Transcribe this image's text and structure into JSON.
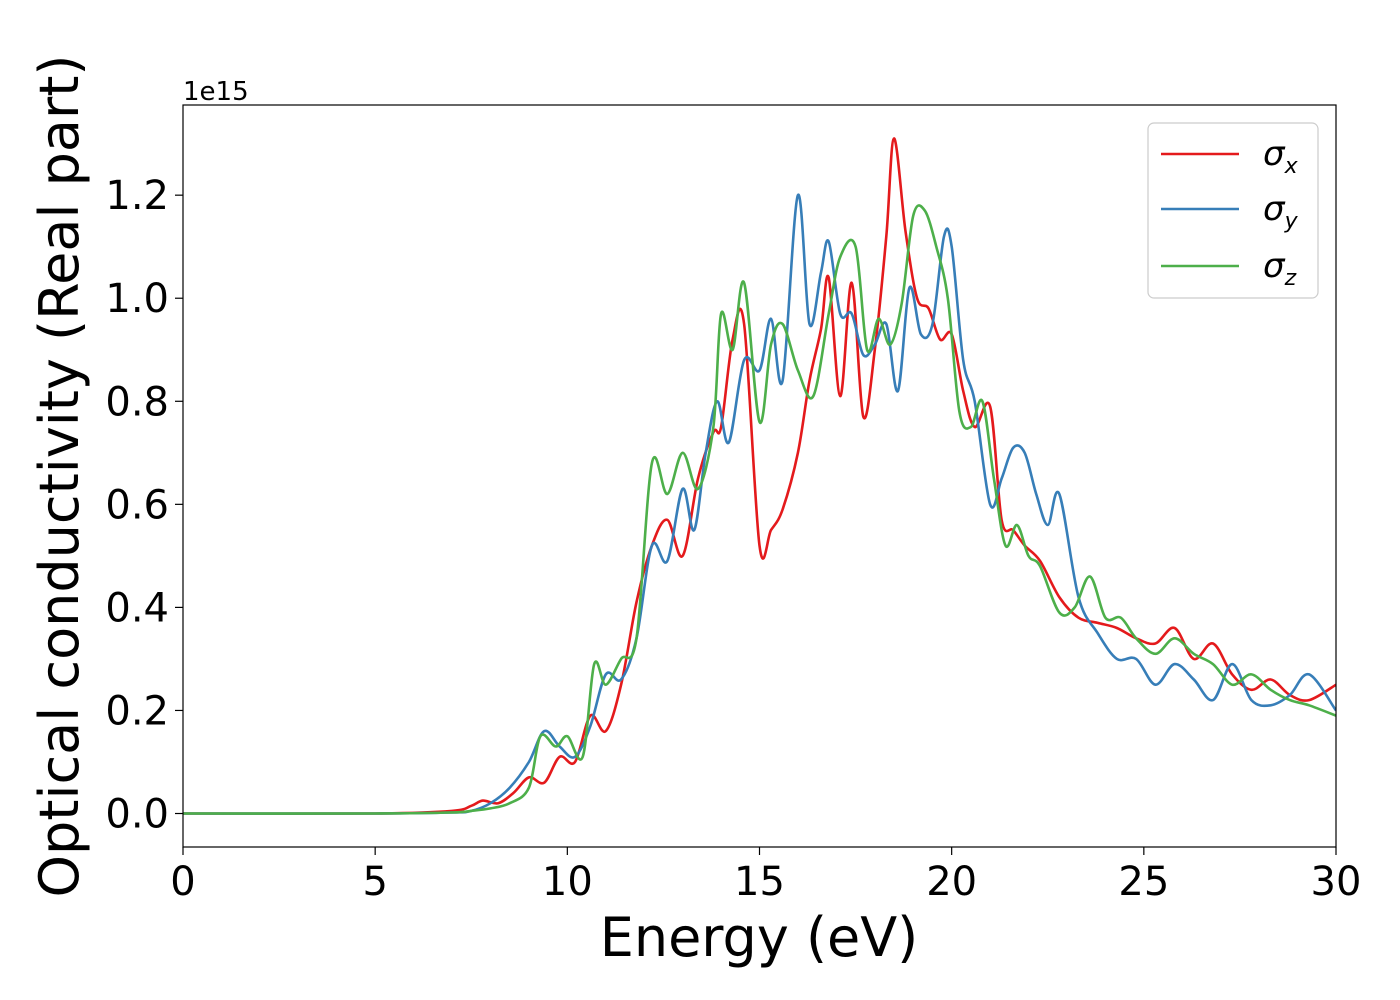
{
  "chart_data": {
    "type": "line",
    "xlabel": "Energy (eV)",
    "ylabel": "Optical conductivity (Real part)",
    "y_offset_label": "1e15",
    "xlim": [
      0,
      30
    ],
    "ylim": [
      -0.065,
      1.375
    ],
    "x_ticks": [
      "0",
      "5",
      "10",
      "15",
      "20",
      "25",
      "30"
    ],
    "y_ticks": [
      "0.0",
      "0.2",
      "0.4",
      "0.6",
      "0.8",
      "1.0",
      "1.2"
    ],
    "grid": false,
    "legend_position": "top-right",
    "series": [
      {
        "name": "σx",
        "symbol": "σ",
        "sub": "x",
        "color": "#e41a1c",
        "x": [
          0,
          5,
          7,
          7.5,
          7.8,
          8.2,
          8.6,
          9.0,
          9.4,
          9.8,
          10.2,
          10.6,
          11.0,
          11.4,
          11.8,
          12.2,
          12.6,
          13.0,
          13.4,
          13.8,
          14.0,
          14.3,
          14.6,
          15.0,
          15.3,
          15.6,
          16.0,
          16.3,
          16.6,
          16.8,
          17.1,
          17.4,
          17.7,
          18.0,
          18.3,
          18.5,
          18.8,
          19.1,
          19.4,
          19.7,
          20.0,
          20.3,
          20.6,
          21.0,
          21.3,
          21.6,
          21.9,
          22.3,
          22.8,
          23.3,
          23.8,
          24.3,
          24.8,
          25.3,
          25.8,
          26.3,
          26.8,
          27.3,
          27.8,
          28.3,
          28.8,
          29.3,
          30
        ],
        "y": [
          0,
          0,
          0.005,
          0.015,
          0.025,
          0.02,
          0.04,
          0.07,
          0.06,
          0.11,
          0.1,
          0.19,
          0.16,
          0.25,
          0.41,
          0.52,
          0.57,
          0.5,
          0.65,
          0.74,
          0.75,
          0.92,
          0.95,
          0.52,
          0.55,
          0.59,
          0.7,
          0.84,
          0.94,
          1.04,
          0.81,
          1.03,
          0.77,
          0.9,
          1.12,
          1.31,
          1.13,
          1.0,
          0.98,
          0.92,
          0.93,
          0.82,
          0.75,
          0.79,
          0.57,
          0.55,
          0.52,
          0.49,
          0.42,
          0.38,
          0.37,
          0.36,
          0.34,
          0.33,
          0.36,
          0.3,
          0.33,
          0.27,
          0.24,
          0.26,
          0.23,
          0.22,
          0.25
        ]
      },
      {
        "name": "σy",
        "symbol": "σ",
        "sub": "y",
        "color": "#377eb8",
        "x": [
          0,
          5,
          7,
          7.5,
          8.0,
          8.5,
          9.0,
          9.4,
          9.8,
          10.2,
          10.6,
          11.0,
          11.4,
          11.8,
          12.2,
          12.6,
          13.0,
          13.3,
          13.6,
          13.9,
          14.2,
          14.6,
          15.0,
          15.3,
          15.6,
          16.0,
          16.3,
          16.6,
          16.8,
          17.1,
          17.4,
          17.7,
          18.0,
          18.3,
          18.6,
          18.9,
          19.2,
          19.5,
          19.8,
          20.0,
          20.3,
          20.6,
          21.0,
          21.3,
          21.6,
          21.9,
          22.2,
          22.5,
          22.8,
          23.3,
          23.8,
          24.3,
          24.8,
          25.3,
          25.8,
          26.3,
          26.8,
          27.3,
          27.8,
          28.3,
          28.8,
          29.3,
          30
        ],
        "y": [
          0,
          0,
          0.002,
          0.005,
          0.02,
          0.05,
          0.1,
          0.16,
          0.13,
          0.11,
          0.17,
          0.27,
          0.26,
          0.34,
          0.52,
          0.49,
          0.63,
          0.55,
          0.7,
          0.8,
          0.72,
          0.88,
          0.86,
          0.96,
          0.84,
          1.2,
          0.95,
          1.05,
          1.11,
          0.97,
          0.97,
          0.89,
          0.91,
          0.95,
          0.82,
          1.02,
          0.93,
          0.95,
          1.12,
          1.1,
          0.88,
          0.8,
          0.6,
          0.65,
          0.71,
          0.7,
          0.62,
          0.56,
          0.62,
          0.42,
          0.35,
          0.3,
          0.3,
          0.25,
          0.29,
          0.26,
          0.22,
          0.29,
          0.22,
          0.21,
          0.23,
          0.27,
          0.2
        ]
      },
      {
        "name": "σz",
        "symbol": "σ",
        "sub": "z",
        "color": "#4daf4a",
        "x": [
          0,
          5,
          7,
          7.5,
          8.0,
          8.5,
          9.0,
          9.3,
          9.7,
          10.0,
          10.4,
          10.7,
          11.0,
          11.4,
          11.8,
          12.2,
          12.6,
          13.0,
          13.4,
          13.8,
          14.0,
          14.3,
          14.6,
          15.0,
          15.3,
          15.6,
          16.0,
          16.4,
          16.8,
          17.1,
          17.5,
          17.8,
          18.1,
          18.4,
          18.7,
          19.0,
          19.3,
          19.6,
          19.9,
          20.2,
          20.5,
          20.8,
          21.1,
          21.4,
          21.7,
          22.0,
          22.3,
          22.8,
          23.2,
          23.6,
          24.0,
          24.4,
          24.8,
          25.3,
          25.8,
          26.3,
          26.8,
          27.3,
          27.8,
          28.3,
          28.8,
          29.3,
          30
        ],
        "y": [
          0,
          0,
          0.002,
          0.005,
          0.01,
          0.02,
          0.05,
          0.15,
          0.13,
          0.15,
          0.11,
          0.29,
          0.25,
          0.3,
          0.34,
          0.68,
          0.62,
          0.7,
          0.63,
          0.75,
          0.97,
          0.9,
          1.03,
          0.76,
          0.91,
          0.95,
          0.86,
          0.81,
          0.97,
          1.08,
          1.1,
          0.9,
          0.96,
          0.91,
          0.99,
          1.16,
          1.17,
          1.1,
          1.0,
          0.78,
          0.75,
          0.8,
          0.65,
          0.52,
          0.56,
          0.5,
          0.48,
          0.39,
          0.4,
          0.46,
          0.38,
          0.38,
          0.34,
          0.31,
          0.34,
          0.31,
          0.29,
          0.25,
          0.27,
          0.24,
          0.22,
          0.21,
          0.19
        ]
      }
    ]
  }
}
